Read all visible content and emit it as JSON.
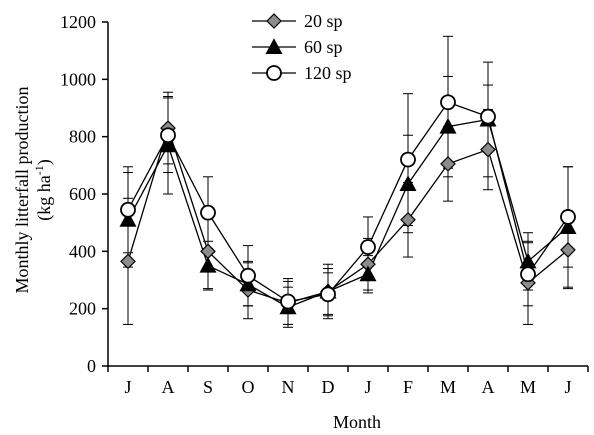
{
  "chart_data": {
    "type": "line",
    "xlabel": "Month",
    "ylabel_line1": "Monthly litterfall production",
    "ylabel_line2_prefix": "(kg ha",
    "ylabel_line2_sup": "-1",
    "ylabel_line2_suffix": ")",
    "categories": [
      "J",
      "A",
      "S",
      "O",
      "N",
      "D",
      "J",
      "F",
      "M",
      "A",
      "M",
      "J"
    ],
    "ylim": [
      0,
      1200
    ],
    "yticks": [
      "0",
      "200",
      "400",
      "600",
      "800",
      "1000",
      "1200"
    ],
    "grid": false,
    "legend_position": "top-center",
    "series": [
      {
        "name": "20 sp",
        "marker": "diamond",
        "fill": "#8c8c8c",
        "values": [
          365,
          830,
          400,
          265,
          220,
          260,
          355,
          510,
          705,
          755,
          290,
          405
        ],
        "errors": [
          220,
          125,
          130,
          100,
          75,
          95,
          90,
          130,
          130,
          140,
          145,
          135
        ]
      },
      {
        "name": "60 sp",
        "marker": "triangle",
        "fill": "#000000",
        "values": [
          510,
          770,
          350,
          285,
          205,
          260,
          320,
          635,
          835,
          860,
          365,
          485
        ],
        "errors": [
          165,
          170,
          85,
          75,
          70,
          80,
          65,
          170,
          175,
          200,
          100,
          210
        ]
      },
      {
        "name": "120 sp",
        "marker": "circle",
        "fill": "#ffffff",
        "values": [
          545,
          805,
          535,
          315,
          225,
          250,
          415,
          720,
          920,
          870,
          320,
          520
        ],
        "errors": [
          150,
          130,
          125,
          105,
          80,
          75,
          105,
          230,
          230,
          110,
          110,
          175
        ]
      }
    ]
  }
}
